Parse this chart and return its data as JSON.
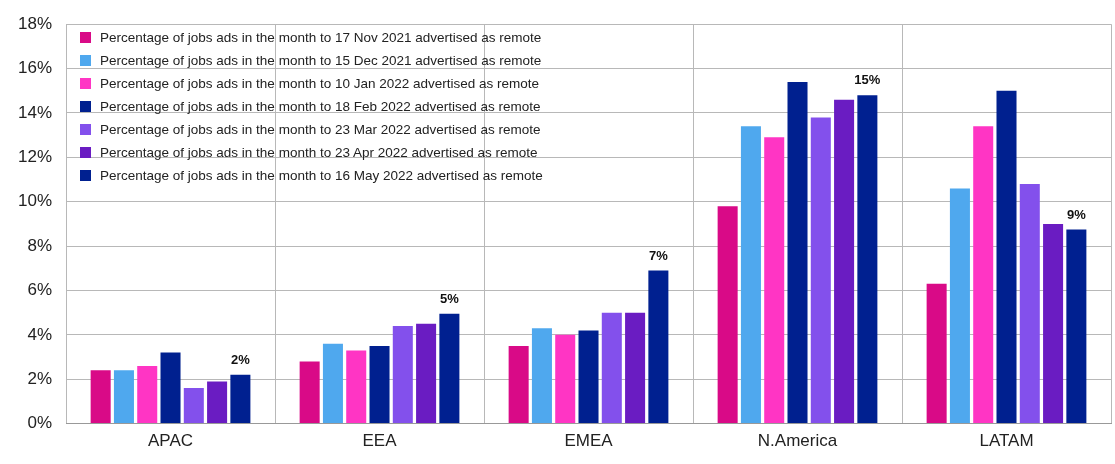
{
  "chart_data": {
    "type": "bar",
    "categories": [
      "APAC",
      "EEA",
      "EMEA",
      "N.America",
      "LATAM"
    ],
    "series": [
      {
        "name": "Percentage of jobs ads in the month to 17 Nov 2021 advertised as remote",
        "color": "#d90a87",
        "values": [
          2.4,
          2.8,
          3.5,
          9.8,
          6.3
        ]
      },
      {
        "name": "Percentage of jobs ads in the month to 15 Dec 2021 advertised as remote",
        "color": "#4fa8ee",
        "values": [
          2.4,
          3.6,
          4.3,
          13.4,
          10.6
        ]
      },
      {
        "name": "Percentage of jobs ads in the month to 10 Jan 2022 advertised as remote",
        "color": "#ff35c4",
        "values": [
          2.6,
          3.3,
          4.0,
          12.9,
          13.4
        ]
      },
      {
        "name": "Percentage of jobs ads in the month to 18 Feb 2022 advertised as remote",
        "color": "#00208f",
        "values": [
          3.2,
          3.5,
          4.2,
          15.4,
          15.0
        ]
      },
      {
        "name": "Percentage of jobs ads in the month to 23 Mar 2022 advertised as remote",
        "color": "#8350ec",
        "values": [
          1.6,
          4.4,
          5.0,
          13.8,
          10.8
        ]
      },
      {
        "name": "Percentage of jobs ads in the month to 23 Apr 2022 advertised as remote",
        "color": "#6a1cc2",
        "values": [
          1.9,
          4.5,
          5.0,
          14.6,
          9.0
        ]
      },
      {
        "name": "Percentage of jobs ads in the month to 16 May 2022 advertised as remote",
        "color": "#002090",
        "values": [
          2.2,
          4.95,
          6.9,
          14.8,
          8.75
        ],
        "value_labels": [
          "2%",
          "5%",
          "7%",
          "15%",
          "9%"
        ]
      }
    ],
    "ylim": [
      0,
      18
    ],
    "yticks": [
      {
        "value": 0,
        "label": "0%"
      },
      {
        "value": 2,
        "label": "2%"
      },
      {
        "value": 4,
        "label": "4%"
      },
      {
        "value": 6,
        "label": "6%"
      },
      {
        "value": 8,
        "label": "8%"
      },
      {
        "value": 10,
        "label": "10%"
      },
      {
        "value": 12,
        "label": "12%"
      },
      {
        "value": 14,
        "label": "14%"
      },
      {
        "value": 16,
        "label": "16%"
      },
      {
        "value": 18,
        "label": "18%"
      }
    ],
    "grid": true,
    "legend": "top left"
  }
}
